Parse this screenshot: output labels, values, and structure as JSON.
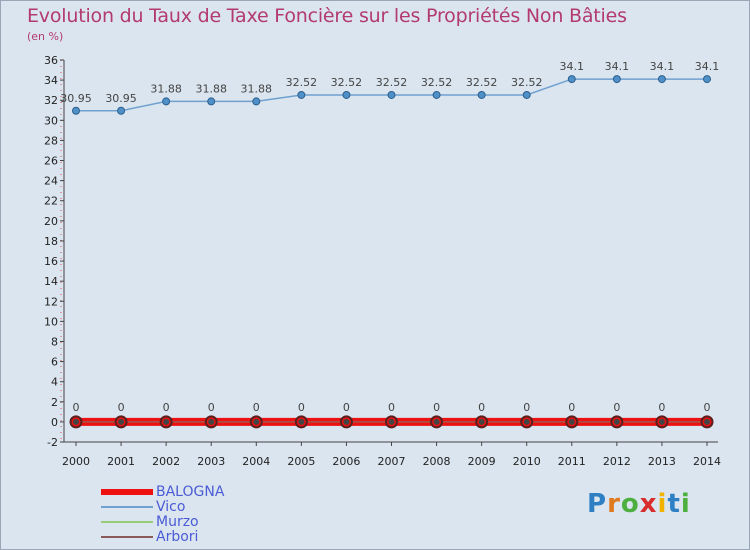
{
  "chart_data": {
    "type": "line",
    "title": "Evolution du Taux de Taxe Foncière sur les Propriétés Non Bâties",
    "ylabel": "(en %)",
    "xlabel": "",
    "x": [
      "2000",
      "2001",
      "2002",
      "2003",
      "2004",
      "2005",
      "2006",
      "2007",
      "2008",
      "2009",
      "2010",
      "2011",
      "2012",
      "2013",
      "2014"
    ],
    "ylim": [
      -2,
      36
    ],
    "yticks": [
      -2,
      0,
      2,
      4,
      6,
      8,
      10,
      12,
      14,
      16,
      18,
      20,
      22,
      24,
      26,
      28,
      30,
      32,
      34,
      36
    ],
    "grid": false,
    "legend_position": "bottom-left",
    "series": [
      {
        "name": "BALOGNA",
        "color": "#ee1111",
        "values": [
          0,
          0,
          0,
          0,
          0,
          0,
          0,
          0,
          0,
          0,
          0,
          0,
          0,
          0,
          0
        ],
        "labels": [
          "0",
          "0",
          "0",
          "0",
          "0",
          "0",
          "0",
          "0",
          "0",
          "0",
          "0",
          "0",
          "0",
          "0",
          "0"
        ]
      },
      {
        "name": "Vico",
        "color": "#6fa0d0",
        "values": [
          30.95,
          30.95,
          31.88,
          31.88,
          31.88,
          32.52,
          32.52,
          32.52,
          32.52,
          32.52,
          32.52,
          34.1,
          34.1,
          34.1,
          34.1
        ],
        "labels": [
          "30.95",
          "30.95",
          "31.88",
          "31.88",
          "31.88",
          "32.52",
          "32.52",
          "32.52",
          "32.52",
          "32.52",
          "32.52",
          "34.1",
          "34.1",
          "34.1",
          "34.1"
        ]
      },
      {
        "name": "Murzo",
        "color": "#99cc77",
        "values": [
          0,
          0,
          0,
          0,
          0,
          0,
          0,
          0,
          0,
          0,
          0,
          0,
          0,
          0,
          0
        ]
      },
      {
        "name": "Arbori",
        "color": "#8a5a5a",
        "values": [
          0,
          0,
          0,
          0,
          0,
          0,
          0,
          0,
          0,
          0,
          0,
          0,
          0,
          0,
          0
        ]
      }
    ]
  },
  "logo": {
    "letters": [
      "P",
      "r",
      "o",
      "x",
      "i",
      "t",
      "i"
    ],
    "colors": [
      "#2e7fc4",
      "#e07a1e",
      "#4caf3f",
      "#d92c2c",
      "#f0b400",
      "#2e7fc4",
      "#4caf3f"
    ]
  }
}
